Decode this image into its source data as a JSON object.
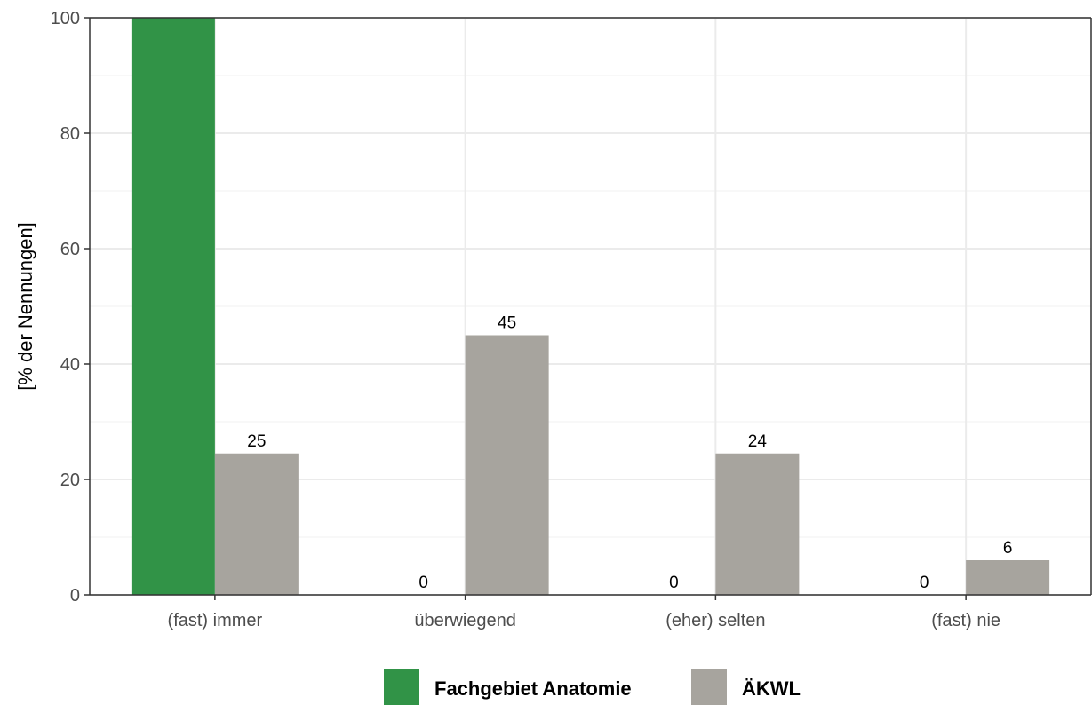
{
  "chart_data": {
    "type": "bar",
    "title": "",
    "xlabel": "",
    "ylabel": "[% der Nennungen]",
    "ylim": [
      0,
      100
    ],
    "yticks": [
      0,
      20,
      40,
      60,
      80,
      100
    ],
    "grid": true,
    "legend_position": "bottom",
    "categories": [
      "(fast) immer",
      "überwiegend",
      "(eher) selten",
      "(fast) nie"
    ],
    "series": [
      {
        "name": "Fachgebiet Anatomie",
        "color": "#319347",
        "values": [
          100,
          0,
          0,
          0
        ],
        "labels": [
          "",
          "0",
          "0",
          "0"
        ]
      },
      {
        "name": "ÄKWL",
        "color": "#a7a49e",
        "values": [
          24.5,
          45,
          24.5,
          6
        ],
        "labels": [
          "25",
          "45",
          "24",
          "6"
        ]
      }
    ]
  }
}
